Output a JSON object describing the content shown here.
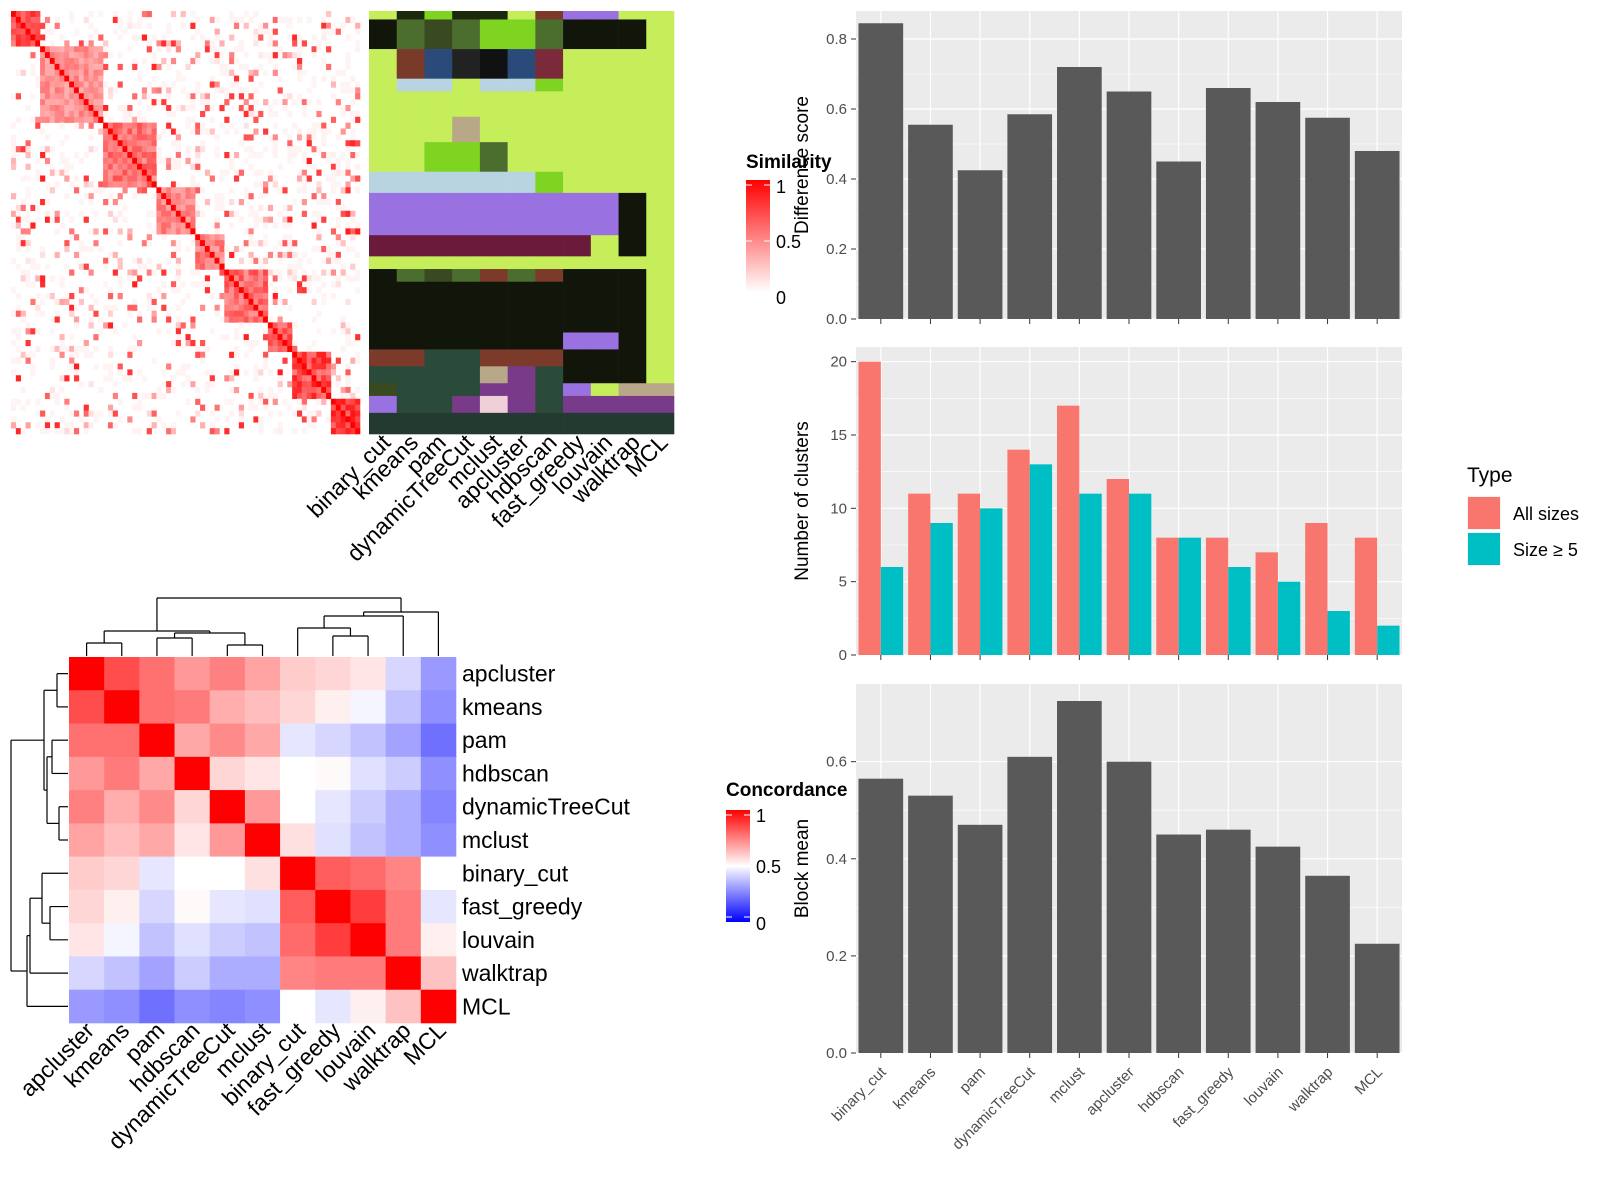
{
  "methods_sim_order": [
    "binary_cut",
    "kmeans",
    "pam",
    "dynamicTreeCut",
    "mclust",
    "apcluster",
    "hdbscan",
    "fast_greedy",
    "louvain",
    "walktrap",
    "MCL"
  ],
  "chart_data": [
    {
      "type": "heatmap",
      "name": "similarity-matrix",
      "legend_title": "Similarity",
      "legend_ticks": [
        "1",
        "0.5",
        "0"
      ],
      "color_low": "#ffffff",
      "color_high": "#ff0000",
      "blocks": [
        {
          "start": 0.0,
          "end": 0.08,
          "value": 0.85
        },
        {
          "start": 0.08,
          "end": 0.26,
          "value": 0.55
        },
        {
          "start": 0.26,
          "end": 0.42,
          "value": 0.7
        },
        {
          "start": 0.42,
          "end": 0.53,
          "value": 0.6
        },
        {
          "start": 0.53,
          "end": 0.61,
          "value": 0.65
        },
        {
          "start": 0.61,
          "end": 0.73,
          "value": 0.75
        },
        {
          "start": 0.73,
          "end": 0.81,
          "value": 0.8
        },
        {
          "start": 0.81,
          "end": 0.92,
          "value": 0.9
        },
        {
          "start": 0.92,
          "end": 1.0,
          "value": 0.95
        }
      ]
    },
    {
      "type": "heatmap",
      "name": "cluster-membership",
      "columns": [
        "binary_cut",
        "kmeans",
        "pam",
        "dynamicTreeCut",
        "mclust",
        "apcluster",
        "hdbscan",
        "fast_greedy",
        "louvain",
        "walktrap",
        "MCL"
      ],
      "bands": [
        {
          "start": 0.0,
          "end": 0.02,
          "colors": [
            "#c5ee5a",
            "#1a2a0a",
            "#7fd321",
            "#1a2a0a",
            "#1a2a0a",
            "#c5ee5a",
            "#7b3a2a",
            "#9a71e0",
            "#9a71e0",
            "#c5ee5a",
            "#c5ee5a"
          ]
        },
        {
          "start": 0.02,
          "end": 0.09,
          "colors": [
            "#12160a",
            "#4b6e2e",
            "#3a4a20",
            "#4b6e2e",
            "#7fd321",
            "#7fd321",
            "#4b6e2e",
            "#12160a",
            "#12160a",
            "#12160a",
            "#c5ee5a"
          ]
        },
        {
          "start": 0.09,
          "end": 0.16,
          "colors": [
            "#c5ee5a",
            "#7a3a2a",
            "#2a4a7a",
            "#222222",
            "#111111",
            "#2a4a7a",
            "#7a2a3a",
            "#c5ee5a",
            "#c5ee5a",
            "#c5ee5a",
            "#c5ee5a"
          ]
        },
        {
          "start": 0.16,
          "end": 0.19,
          "colors": [
            "#c5ee5a",
            "#b8d4e0",
            "#b8d4e0",
            "#c5ee5a",
            "#b8d4e0",
            "#b8d4e0",
            "#7fd321",
            "#c5ee5a",
            "#c5ee5a",
            "#c5ee5a",
            "#c5ee5a"
          ]
        },
        {
          "start": 0.19,
          "end": 0.25,
          "colors": [
            "#c5ee5a",
            "#c5ee5a",
            "#c5ee5a",
            "#c5ee5a",
            "#c5ee5a",
            "#c5ee5a",
            "#c5ee5a",
            "#c5ee5a",
            "#c5ee5a",
            "#c5ee5a",
            "#c5ee5a"
          ]
        },
        {
          "start": 0.25,
          "end": 0.31,
          "colors": [
            "#c5ee5a",
            "#c5ee5a",
            "#c5ee5a",
            "#b8a888",
            "#c5ee5a",
            "#c5ee5a",
            "#c5ee5a",
            "#c5ee5a",
            "#c5ee5a",
            "#c5ee5a",
            "#c5ee5a"
          ]
        },
        {
          "start": 0.31,
          "end": 0.38,
          "colors": [
            "#c5ee5a",
            "#c5ee5a",
            "#7fd321",
            "#7fd321",
            "#4b6e2e",
            "#c5ee5a",
            "#c5ee5a",
            "#c5ee5a",
            "#c5ee5a",
            "#c5ee5a",
            "#c5ee5a"
          ]
        },
        {
          "start": 0.38,
          "end": 0.43,
          "colors": [
            "#b8d4e0",
            "#b8d4e0",
            "#b8d4e0",
            "#b8d4e0",
            "#b8d4e0",
            "#b8d4e0",
            "#7fd321",
            "#c5ee5a",
            "#c5ee5a",
            "#c5ee5a",
            "#c5ee5a"
          ]
        },
        {
          "start": 0.43,
          "end": 0.53,
          "colors": [
            "#9a71e0",
            "#9a71e0",
            "#9a71e0",
            "#9a71e0",
            "#9a71e0",
            "#9a71e0",
            "#9a71e0",
            "#9a71e0",
            "#9a71e0",
            "#12160a",
            "#c5ee5a"
          ]
        },
        {
          "start": 0.53,
          "end": 0.58,
          "colors": [
            "#6a1a3a",
            "#6a1a3a",
            "#6a1a3a",
            "#6a1a3a",
            "#6a1a3a",
            "#6a1a3a",
            "#6a1a3a",
            "#6a1a3a",
            "#c5ee5a",
            "#12160a",
            "#c5ee5a"
          ]
        },
        {
          "start": 0.58,
          "end": 0.61,
          "colors": [
            "#c5ee5a",
            "#c5ee5a",
            "#c5ee5a",
            "#c5ee5a",
            "#c5ee5a",
            "#c5ee5a",
            "#c5ee5a",
            "#c5ee5a",
            "#c5ee5a",
            "#c5ee5a",
            "#c5ee5a"
          ]
        },
        {
          "start": 0.61,
          "end": 0.64,
          "colors": [
            "#12160a",
            "#4b6e2e",
            "#3a4a20",
            "#4b6e2e",
            "#7b3a2a",
            "#4b6e2e",
            "#7b3a2a",
            "#12160a",
            "#12160a",
            "#12160a",
            "#c5ee5a"
          ]
        },
        {
          "start": 0.64,
          "end": 0.76,
          "colors": [
            "#12160a",
            "#12160a",
            "#12160a",
            "#12160a",
            "#12160a",
            "#12160a",
            "#12160a",
            "#12160a",
            "#12160a",
            "#12160a",
            "#c5ee5a"
          ]
        },
        {
          "start": 0.76,
          "end": 0.8,
          "colors": [
            "#12160a",
            "#12160a",
            "#12160a",
            "#12160a",
            "#12160a",
            "#12160a",
            "#12160a",
            "#9a71e0",
            "#9a71e0",
            "#12160a",
            "#c5ee5a"
          ]
        },
        {
          "start": 0.8,
          "end": 0.84,
          "colors": [
            "#7b3a2a",
            "#7b3a2a",
            "#2a4a3a",
            "#2a4a3a",
            "#7b3a2a",
            "#7b3a2a",
            "#7b3a2a",
            "#12160a",
            "#12160a",
            "#12160a",
            "#c5ee5a"
          ]
        },
        {
          "start": 0.84,
          "end": 0.88,
          "colors": [
            "#2a4a3a",
            "#2a4a3a",
            "#2a4a3a",
            "#2a4a3a",
            "#b8a888",
            "#7a3a8a",
            "#2a4a3a",
            "#12160a",
            "#12160a",
            "#12160a",
            "#c5ee5a"
          ]
        },
        {
          "start": 0.88,
          "end": 0.91,
          "colors": [
            "#3a4a20",
            "#2a4a3a",
            "#2a4a3a",
            "#2a4a3a",
            "#7a3a8a",
            "#7a3a8a",
            "#2a4a3a",
            "#9a71e0",
            "#c5ee5a",
            "#b8a888",
            "#b8a888"
          ]
        },
        {
          "start": 0.91,
          "end": 0.95,
          "colors": [
            "#9a71e0",
            "#2a4a3a",
            "#2a4a3a",
            "#7a3a8a",
            "#f0d0d8",
            "#7a3a8a",
            "#2a4a3a",
            "#7a3a8a",
            "#7a3a8a",
            "#7a3a8a",
            "#7a3a8a"
          ]
        },
        {
          "start": 0.95,
          "end": 1.0,
          "colors": [
            "#223a30",
            "#223a30",
            "#223a30",
            "#223a30",
            "#223a30",
            "#223a30",
            "#223a30",
            "#223a30",
            "#223a30",
            "#223a30",
            "#223a30"
          ]
        }
      ]
    },
    {
      "type": "heatmap",
      "name": "concordance-matrix",
      "legend_title": "Concordance",
      "legend_ticks": [
        "1",
        "0.5",
        "0"
      ],
      "color_low": "#0000ff",
      "color_mid": "#ffffff",
      "color_high": "#ff0000",
      "rows": [
        "apcluster",
        "kmeans",
        "pam",
        "hdbscan",
        "dynamicTreeCut",
        "mclust",
        "binary_cut",
        "fast_greedy",
        "louvain",
        "walktrap",
        "MCL"
      ],
      "columns": [
        "apcluster",
        "kmeans",
        "pam",
        "hdbscan",
        "dynamicTreeCut",
        "mclust",
        "binary_cut",
        "fast_greedy",
        "louvain",
        "walktrap",
        "MCL"
      ],
      "values": [
        [
          1.0,
          0.85,
          0.78,
          0.7,
          0.75,
          0.68,
          0.6,
          0.58,
          0.55,
          0.42,
          0.3
        ],
        [
          0.85,
          1.0,
          0.78,
          0.76,
          0.66,
          0.63,
          0.58,
          0.53,
          0.48,
          0.38,
          0.28
        ],
        [
          0.78,
          0.78,
          1.0,
          0.67,
          0.73,
          0.67,
          0.45,
          0.42,
          0.38,
          0.32,
          0.22
        ],
        [
          0.7,
          0.76,
          0.67,
          1.0,
          0.58,
          0.55,
          0.5,
          0.51,
          0.44,
          0.4,
          0.28
        ],
        [
          0.75,
          0.66,
          0.73,
          0.58,
          1.0,
          0.7,
          0.5,
          0.45,
          0.4,
          0.34,
          0.26
        ],
        [
          0.68,
          0.63,
          0.67,
          0.55,
          0.7,
          1.0,
          0.56,
          0.44,
          0.38,
          0.34,
          0.28
        ],
        [
          0.6,
          0.58,
          0.45,
          0.5,
          0.5,
          0.56,
          1.0,
          0.82,
          0.79,
          0.74,
          0.5
        ],
        [
          0.58,
          0.53,
          0.42,
          0.51,
          0.45,
          0.44,
          0.82,
          1.0,
          0.88,
          0.76,
          0.45
        ],
        [
          0.55,
          0.48,
          0.38,
          0.44,
          0.4,
          0.38,
          0.79,
          0.88,
          1.0,
          0.76,
          0.53
        ],
        [
          0.42,
          0.38,
          0.32,
          0.4,
          0.34,
          0.34,
          0.74,
          0.76,
          0.76,
          1.0,
          0.62
        ],
        [
          0.3,
          0.28,
          0.22,
          0.28,
          0.26,
          0.28,
          0.5,
          0.45,
          0.53,
          0.62,
          1.0
        ]
      ]
    },
    {
      "type": "bar",
      "name": "difference-score",
      "categories": [
        "binary_cut",
        "kmeans",
        "pam",
        "dynamicTreeCut",
        "mclust",
        "apcluster",
        "hdbscan",
        "fast_greedy",
        "louvain",
        "walktrap",
        "MCL"
      ],
      "values": [
        0.845,
        0.555,
        0.425,
        0.585,
        0.72,
        0.65,
        0.45,
        0.66,
        0.62,
        0.575,
        0.48
      ],
      "ylabel": "Difference score",
      "ylim": [
        0,
        0.88
      ],
      "yticks": [
        "0.0",
        "0.2",
        "0.4",
        "0.6",
        "0.8"
      ],
      "bar_color": "#595959",
      "panel_color": "#ebebeb"
    },
    {
      "type": "bar",
      "name": "number-of-clusters",
      "categories": [
        "binary_cut",
        "kmeans",
        "pam",
        "dynamicTreeCut",
        "mclust",
        "apcluster",
        "hdbscan",
        "fast_greedy",
        "louvain",
        "walktrap",
        "MCL"
      ],
      "series": [
        {
          "name": "All sizes",
          "color": "#f8766d",
          "values": [
            20,
            11,
            11,
            14,
            17,
            12,
            8,
            8,
            7,
            9,
            8
          ]
        },
        {
          "name": "Size ≥ 5",
          "color": "#00bfc4",
          "values": [
            6,
            9,
            10,
            13,
            11,
            11,
            8,
            6,
            5,
            3,
            2
          ]
        }
      ],
      "ylabel": "Number of clusters",
      "ylim": [
        0,
        21
      ],
      "yticks": [
        "0",
        "5",
        "10",
        "15",
        "20"
      ],
      "legend_title": "Type",
      "panel_color": "#ebebeb"
    },
    {
      "type": "bar",
      "name": "block-mean",
      "categories": [
        "binary_cut",
        "kmeans",
        "pam",
        "dynamicTreeCut",
        "mclust",
        "apcluster",
        "hdbscan",
        "fast_greedy",
        "louvain",
        "walktrap",
        "MCL"
      ],
      "values": [
        0.565,
        0.53,
        0.47,
        0.61,
        0.725,
        0.6,
        0.45,
        0.46,
        0.425,
        0.365,
        0.225
      ],
      "ylabel": "Block mean",
      "ylim": [
        0,
        0.76
      ],
      "yticks": [
        "0.0",
        "0.2",
        "0.4",
        "0.6"
      ],
      "bar_color": "#595959",
      "panel_color": "#ebebeb"
    }
  ]
}
